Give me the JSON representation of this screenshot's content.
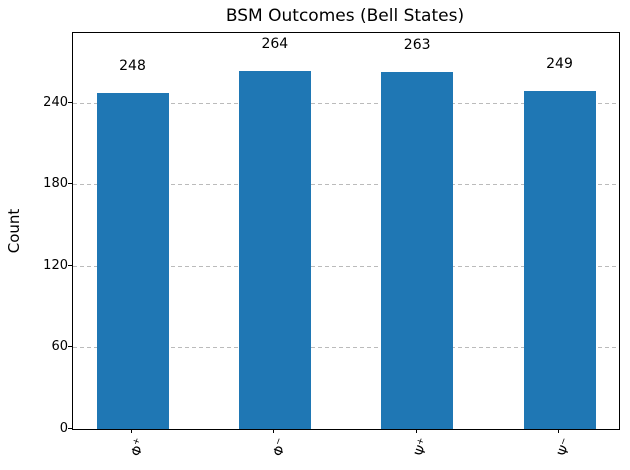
{
  "title": "BSM Outcomes (Bell States)",
  "chart_data": {
    "type": "bar",
    "title": "BSM Outcomes (Bell States)",
    "xlabel": "",
    "ylabel": "Count",
    "categories": [
      {
        "base": "Φ",
        "sup": "+"
      },
      {
        "base": "Φ",
        "sup": "−"
      },
      {
        "base": "Ψ",
        "sup": "+"
      },
      {
        "base": "Ψ",
        "sup": "−"
      }
    ],
    "values": [
      248,
      264,
      263,
      249
    ],
    "bar_labels": [
      "248",
      "264",
      "263",
      "249"
    ],
    "yticks": [
      0,
      60,
      120,
      180,
      240
    ],
    "ylim": [
      0,
      292
    ],
    "bar_color": "#1f77b4",
    "grid": {
      "axis": "y",
      "style": "dashed",
      "color": "#bbbbbb"
    },
    "xtick_rotation_deg": 70,
    "legend": null
  }
}
